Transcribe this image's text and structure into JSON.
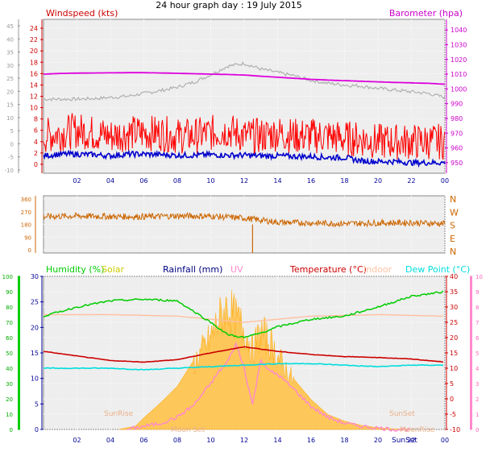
{
  "title": "24 hour graph day : 19 July 2015",
  "colors": {
    "wind": "#ff0000",
    "wind_dark": "#0000cc",
    "baro": "#dd00dd",
    "grey": "#b0b0b0",
    "dir": "#cc6600",
    "humidity": "#00cc00",
    "solar": "#ffc040",
    "solar_label": "#cccc00",
    "rain": "#000080",
    "uv": "#ff88cc",
    "temp": "#cc0000",
    "indoor": "#ffc0a0",
    "dew": "#00dddd",
    "axis_blue": "#000099",
    "sun_text": "#e8b088"
  },
  "chart_data": [
    {
      "type": "line",
      "name": "wind-barometer",
      "title": "24 hour graph day : 19 July 2015",
      "y_left_label": "Windspeed (kts)",
      "y_right_label": "Barometer (hpa)",
      "x_ticks": [
        "02",
        "04",
        "06",
        "08",
        "10",
        "12",
        "14",
        "16",
        "18",
        "20",
        "22",
        "00"
      ],
      "y_left_ticks": [
        "24",
        "22",
        "20",
        "18",
        "16",
        "14",
        "12",
        "10",
        "8",
        "6",
        "4",
        "2",
        "0"
      ],
      "y_left_range": [
        -1,
        25
      ],
      "y_right_ticks": [
        "1040",
        "1030",
        "1020",
        "1010",
        "1000",
        "990",
        "980",
        "970",
        "960",
        "950"
      ],
      "y_right_range": [
        945,
        1045
      ],
      "y_outer_ticks": [
        "45",
        "40",
        "35",
        "30",
        "25",
        "20",
        "15",
        "10",
        "5",
        "0",
        "-5",
        "-10"
      ],
      "series": [
        {
          "key": "barometer",
          "axis": "right",
          "x": [
            0,
            1,
            2,
            3,
            4,
            5,
            6,
            7,
            8,
            9,
            10,
            11,
            12,
            13,
            14,
            15,
            16,
            17,
            18,
            19,
            20,
            21,
            22,
            23,
            24
          ],
          "y": [
            1010,
            1010.5,
            1010.7,
            1010.8,
            1010.9,
            1011,
            1011,
            1010.8,
            1010.6,
            1010.3,
            1010,
            1009.8,
            1009.4,
            1008.6,
            1007.9,
            1007.2,
            1006.5,
            1006,
            1005.6,
            1005.2,
            1004.8,
            1004.4,
            1004.1,
            1003.8,
            1003.2
          ]
        },
        {
          "key": "grey",
          "axis": "left",
          "x": [
            0,
            1,
            2,
            3,
            4,
            5,
            6,
            7,
            8,
            9,
            10,
            11,
            12,
            13,
            14,
            15,
            16,
            17,
            18,
            19,
            20,
            21,
            22,
            23,
            24
          ],
          "y": [
            11.5,
            11.5,
            11.5,
            11.6,
            11.8,
            12,
            12.5,
            13,
            13.6,
            14.5,
            15.8,
            17.3,
            17.8,
            16.8,
            16.2,
            15.6,
            14.8,
            14.3,
            14,
            13.8,
            13.4,
            13.1,
            12.8,
            12.5,
            11.8
          ]
        },
        {
          "key": "gust",
          "axis": "left",
          "x": [
            0,
            1,
            2,
            3,
            4,
            5,
            6,
            7,
            8,
            9,
            10,
            11,
            12,
            13,
            14,
            15,
            16,
            17,
            18,
            19,
            20,
            21,
            22,
            23,
            24
          ],
          "y": [
            5,
            5.5,
            6,
            5.5,
            5,
            5.5,
            5.5,
            5.5,
            5,
            5,
            5.5,
            6,
            5,
            5,
            5.5,
            5,
            5,
            5,
            4.5,
            4.5,
            4,
            4,
            4,
            4,
            4
          ],
          "amp": 3.2
        },
        {
          "key": "average",
          "axis": "left",
          "x": [
            0,
            1,
            2,
            3,
            4,
            5,
            6,
            7,
            8,
            9,
            10,
            11,
            12,
            13,
            14,
            15,
            16,
            17,
            18,
            19,
            20,
            21,
            22,
            23,
            24
          ],
          "y": [
            1.5,
            1.8,
            1.8,
            1.7,
            1.5,
            1.8,
            1.8,
            1.7,
            1.6,
            1.6,
            1.7,
            1.6,
            1.6,
            1.5,
            1.5,
            1.4,
            1.4,
            1.2,
            1.2,
            0.6,
            0.5,
            0.5,
            0.3,
            0.3,
            0.3
          ],
          "amp": 0.5
        }
      ]
    },
    {
      "type": "line",
      "name": "wind-direction",
      "y_ticks": [
        "360",
        "270",
        "180",
        "90",
        "0"
      ],
      "y_range": [
        0,
        360
      ],
      "compass": [
        "N",
        "W",
        "S",
        "E",
        "N"
      ],
      "series": [
        {
          "key": "direction",
          "x": [
            0,
            2,
            4,
            6,
            8,
            10,
            12,
            14,
            16,
            18,
            20,
            22,
            24
          ],
          "y": [
            235,
            240,
            235,
            235,
            240,
            238,
            225,
            195,
            190,
            185,
            190,
            192,
            185
          ],
          "amp": 22
        }
      ]
    },
    {
      "type": "line",
      "name": "temperature-humidity",
      "x_ticks": [
        "02",
        "04",
        "06",
        "08",
        "10",
        "12",
        "14",
        "16",
        "18",
        "20",
        "22",
        "00"
      ],
      "y_outer_left_ticks": [
        "100",
        "90",
        "80",
        "70",
        "60",
        "50",
        "40",
        "30",
        "20",
        "10",
        "0"
      ],
      "y_left_ticks": [
        "30",
        "25",
        "20",
        "15",
        "10",
        "5",
        "0"
      ],
      "y_right_ticks": [
        "40",
        "35",
        "30",
        "25",
        "20",
        "15",
        "10",
        "5",
        "0",
        "-5",
        "-10"
      ],
      "y_right_range": [
        -10,
        40
      ],
      "y_outer_right_ticks": [
        "10",
        "9",
        "8",
        "7",
        "6",
        "5",
        "4",
        "3",
        "2",
        "1",
        "0"
      ],
      "legend": [
        {
          "label": "Humidity (%)",
          "key": "humidity"
        },
        {
          "label": "Solar",
          "key": "solar_label"
        },
        {
          "label": "Rainfall (mm)",
          "key": "rain"
        },
        {
          "label": "UV",
          "key": "uv"
        },
        {
          "label": "Temperature (°C)",
          "key": "temp"
        },
        {
          "label": "Indoor",
          "key": "indoor"
        },
        {
          "label": "Dew Point (°C)",
          "key": "dew"
        }
      ],
      "annotations": [
        "SunRise",
        "SunSet",
        "SunSet",
        "Moon Set",
        "MoonRise"
      ],
      "series": [
        {
          "key": "humidity",
          "axis": "humidity",
          "x": [
            0,
            2,
            4,
            6,
            8,
            10,
            11,
            12,
            13,
            14,
            16,
            18,
            20,
            22,
            24
          ],
          "y": [
            74,
            80,
            84,
            85,
            84,
            70,
            62,
            60,
            63,
            67,
            72,
            74,
            80,
            87,
            90
          ]
        },
        {
          "key": "indoor",
          "axis": "right",
          "x": [
            0,
            4,
            8,
            12,
            16,
            20,
            24
          ],
          "y": [
            27.5,
            27.5,
            27,
            25,
            27,
            27.5,
            27
          ]
        },
        {
          "key": "temp",
          "axis": "right",
          "x": [
            0,
            2,
            4,
            6,
            8,
            10,
            12,
            14,
            16,
            18,
            20,
            22,
            24
          ],
          "y": [
            15.5,
            14,
            12.5,
            12,
            12.8,
            15,
            17,
            15.5,
            14.5,
            13.8,
            13.5,
            13,
            12
          ]
        },
        {
          "key": "dew",
          "axis": "right",
          "x": [
            0,
            2,
            4,
            6,
            8,
            10,
            12,
            14,
            16,
            18,
            20,
            22,
            24
          ],
          "y": [
            10,
            10,
            10,
            9.5,
            10,
            10.5,
            11,
            11.5,
            11.5,
            11,
            10.5,
            11,
            11
          ]
        },
        {
          "key": "solar",
          "axis": "solar",
          "x": [
            4.5,
            5.5,
            6,
            7,
            8,
            9,
            10,
            10.5,
            11,
            11.5,
            12,
            12.5,
            13,
            13.5,
            14,
            15,
            16,
            17,
            18,
            19,
            20,
            21,
            22
          ],
          "y": [
            0,
            20,
            70,
            160,
            260,
            420,
            580,
            700,
            780,
            700,
            640,
            500,
            620,
            560,
            460,
            300,
            180,
            90,
            50,
            25,
            10,
            3,
            0
          ]
        },
        {
          "key": "uv",
          "axis": "uv",
          "x": [
            5,
            6,
            7,
            8,
            9,
            10,
            10.5,
            11,
            11.5,
            12,
            12.5,
            13,
            13.5,
            14,
            15,
            16,
            17,
            18,
            19,
            20,
            21,
            22
          ],
          "y": [
            0,
            0.2,
            0.4,
            0.8,
            1.6,
            3,
            3.8,
            4.4,
            5.6,
            4,
            1.6,
            4.6,
            3.8,
            3.6,
            2.6,
            1.5,
            0.8,
            0.4,
            0.2,
            0.1,
            0,
            0
          ]
        }
      ]
    }
  ],
  "sun_labels": {
    "sunrise": "SunRise",
    "sunset": "SunSet",
    "sunset2": "SunSet",
    "moonset": "Moon Set",
    "moonrise": "MoonRise"
  }
}
